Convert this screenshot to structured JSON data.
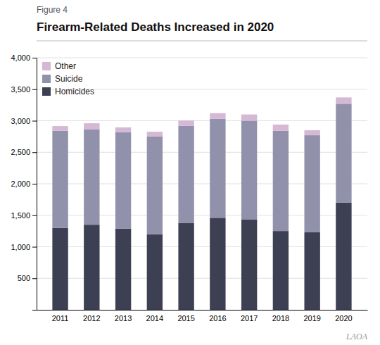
{
  "chart_data": {
    "type": "bar",
    "stacked": true,
    "title": "Firearm-Related Deaths Increased in 2020",
    "annotations": [
      "Figure 4",
      "LAOA"
    ],
    "categories": [
      "2011",
      "2012",
      "2013",
      "2014",
      "2015",
      "2016",
      "2017",
      "2018",
      "2019",
      "2020"
    ],
    "series": [
      {
        "name": "Homicides",
        "color": "#3d3f52",
        "values": [
          1300,
          1350,
          1290,
          1200,
          1380,
          1460,
          1430,
          1250,
          1230,
          1700
        ]
      },
      {
        "name": "Suicide",
        "color": "#9191ab",
        "values": [
          1540,
          1510,
          1530,
          1550,
          1540,
          1570,
          1570,
          1590,
          1540,
          1570
        ]
      },
      {
        "name": "Other",
        "color": "#d4b8d4",
        "values": [
          75,
          100,
          75,
          75,
          85,
          90,
          100,
          100,
          80,
          100
        ]
      }
    ],
    "ylim": [
      0,
      4000
    ],
    "yticks": [
      500,
      {
        "value": 1000,
        "label": "1,000"
      },
      {
        "value": 1500,
        "label": "1,500"
      },
      {
        "value": 2000,
        "label": "2,000"
      },
      {
        "value": 2500,
        "label": "2,500"
      },
      {
        "value": 3000,
        "label": "3,000"
      },
      {
        "value": 3500,
        "label": "3,500"
      },
      {
        "value": 4000,
        "label": "4,000"
      }
    ],
    "grid": true,
    "legend": "upper left"
  }
}
